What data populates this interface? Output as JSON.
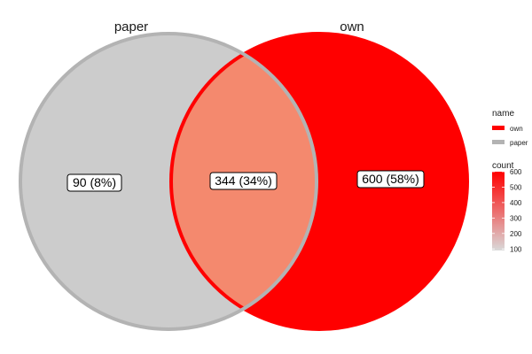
{
  "chart_data": {
    "type": "venn",
    "sets": [
      {
        "name": "paper",
        "color": "#b3b3b3",
        "fill": "#cccccc"
      },
      {
        "name": "own",
        "color": "#ff0000",
        "fill": "#ff0000"
      }
    ],
    "regions": [
      {
        "sets": [
          "paper"
        ],
        "count": 90,
        "percent": 8,
        "label": "90 (8%)"
      },
      {
        "sets": [
          "paper",
          "own"
        ],
        "count": 344,
        "percent": 34,
        "label": "344 (34%)"
      },
      {
        "sets": [
          "own"
        ],
        "count": 600,
        "percent": 58,
        "label": "600 (58%)"
      }
    ],
    "legend": {
      "placement": "right",
      "name_title": "name",
      "name_items": [
        {
          "label": "own",
          "color": "#ff0000"
        },
        {
          "label": "paper",
          "color": "#b3b3b3"
        }
      ],
      "count_title": "count",
      "count_ticks": [
        600,
        500,
        400,
        300,
        200,
        100
      ],
      "count_range": [
        90,
        600
      ],
      "count_low_color": "#d9d9d9",
      "count_high_color": "#ff0000"
    }
  }
}
